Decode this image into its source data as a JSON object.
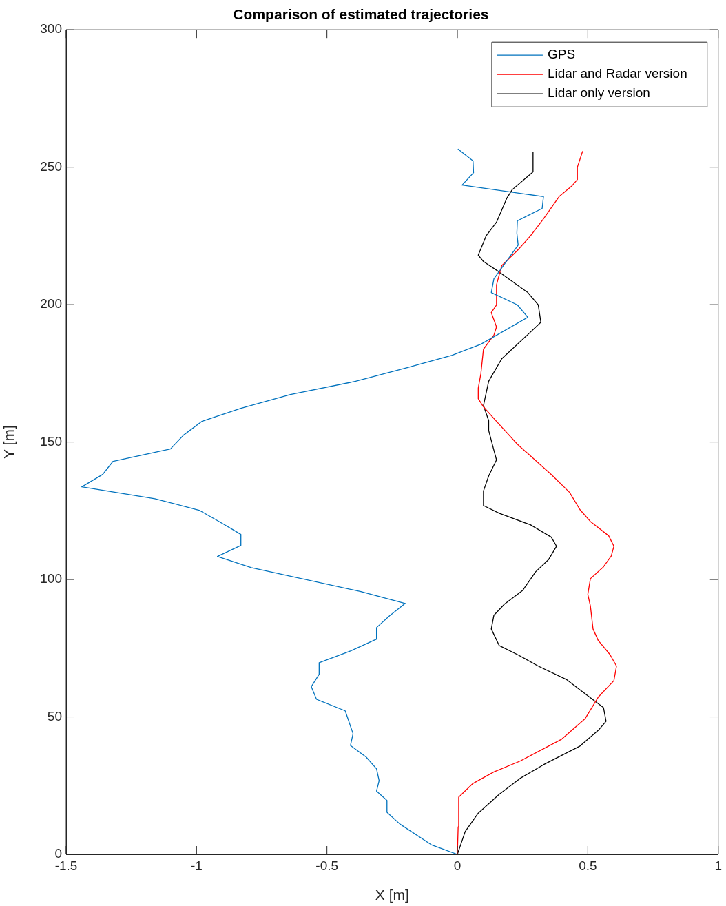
{
  "chart_data": {
    "type": "line",
    "title": "Comparison of estimated trajectories",
    "xlabel": "X [m]",
    "ylabel": "Y [m]",
    "xlim": [
      -1.5,
      1
    ],
    "xticks": [
      -1.5,
      -1,
      -0.5,
      0,
      0.5,
      1
    ],
    "ylim": [
      0,
      300
    ],
    "yticks": [
      0,
      50,
      100,
      150,
      200,
      250,
      300
    ],
    "grid": false,
    "legend": "top right",
    "marker": "none",
    "line_style": "solid",
    "series": [
      {
        "name": "GPS",
        "color": "#0072bd",
        "x": [
          0,
          -0.1,
          -0.22,
          -0.27,
          -0.27,
          -0.31,
          -0.3,
          -0.31,
          -0.35,
          -0.41,
          -0.4,
          -0.43,
          -0.54,
          -0.56,
          -0.53,
          -0.53,
          -0.41,
          -0.31,
          -0.31,
          -0.26,
          -0.2,
          -0.37,
          -0.79,
          -0.92,
          -0.83,
          -0.83,
          -0.91,
          -0.99,
          -1.16,
          -1.44,
          -1.36,
          -1.32,
          -1.1,
          -1.05,
          -0.98,
          -0.83,
          -0.64,
          -0.39,
          -0.19,
          -0.02,
          0.09,
          0.27,
          0.23,
          0.13,
          0.14,
          0.233,
          0.228,
          0.23,
          0.325,
          0.33,
          0.018,
          0.062,
          0.06,
          0.002
        ],
        "values": [
          0,
          3.5,
          11,
          15.3,
          19.6,
          23,
          26.8,
          31.1,
          35.4,
          39.6,
          43.9,
          52.2,
          56.4,
          61,
          65.5,
          69.7,
          74,
          78.3,
          82.5,
          86.8,
          91.3,
          95.6,
          104.3,
          108.4,
          112.4,
          116.4,
          120.9,
          125.2,
          129.4,
          133.7,
          138.2,
          143,
          147.5,
          152.5,
          157.5,
          162.3,
          167.3,
          172.1,
          177.1,
          181.6,
          185.6,
          195.4,
          199.9,
          204.4,
          209.4,
          221.7,
          226,
          230.5,
          235,
          239.3,
          243.5,
          248,
          252.3,
          256.6
        ]
      },
      {
        "name": "Lidar and Radar version",
        "color": "#ff0000",
        "x": [
          0,
          0.003,
          0.005,
          0.06,
          0.14,
          0.24,
          0.4,
          0.49,
          0.54,
          0.6,
          0.61,
          0.585,
          0.54,
          0.52,
          0.51,
          0.5,
          0.51,
          0.56,
          0.59,
          0.6,
          0.58,
          0.51,
          0.47,
          0.43,
          0.36,
          0.23,
          0.15,
          0.1,
          0.08,
          0.08,
          0.09,
          0.1,
          0.14,
          0.15,
          0.13,
          0.15,
          0.15,
          0.17,
          0.23,
          0.28,
          0.33,
          0.39,
          0.44,
          0.46,
          0.46,
          0.48
        ],
        "values": [
          0,
          10,
          20.8,
          25.8,
          30,
          33.9,
          41.9,
          49.4,
          57.2,
          63.2,
          68.5,
          72.7,
          77.8,
          82,
          90.3,
          94.6,
          100.3,
          104.6,
          108.6,
          112.1,
          115.9,
          121.1,
          125.4,
          131.7,
          138.2,
          149.2,
          157.5,
          162.8,
          165.8,
          169.6,
          174.8,
          183.8,
          188.9,
          191.9,
          197.1,
          199.9,
          207.2,
          214.2,
          219.7,
          225,
          231.2,
          239.3,
          243.3,
          245.5,
          250,
          255.8
        ]
      },
      {
        "name": "Lidar only version",
        "color": "#000000",
        "x": [
          0,
          0.03,
          0.08,
          0.16,
          0.24,
          0.33,
          0.47,
          0.54,
          0.57,
          0.56,
          0.49,
          0.42,
          0.31,
          0.23,
          0.16,
          0.13,
          0.14,
          0.18,
          0.25,
          0.3,
          0.35,
          0.38,
          0.36,
          0.28,
          0.16,
          0.1,
          0.1,
          0.12,
          0.15,
          0.14,
          0.12,
          0.12,
          0.1,
          0.12,
          0.17,
          0.27,
          0.32,
          0.31,
          0.27,
          0.16,
          0.1,
          0.08,
          0.11,
          0.15,
          0.19,
          0.21,
          0.29,
          0.29
        ],
        "values": [
          0,
          8.3,
          15,
          21.8,
          27.6,
          32.6,
          39.4,
          45.1,
          48.4,
          53.4,
          58.4,
          63.5,
          68.5,
          72.7,
          76,
          82,
          87,
          91,
          96,
          102.8,
          107.3,
          112.1,
          115.4,
          119.9,
          124.1,
          126.9,
          132.2,
          137.7,
          143.5,
          147,
          154.2,
          157.8,
          163.3,
          172.1,
          180.3,
          189.1,
          193.6,
          199.9,
          204.4,
          211.9,
          215.7,
          218,
          225,
          230,
          238.8,
          241.8,
          248.3,
          255.6
        ]
      }
    ]
  }
}
